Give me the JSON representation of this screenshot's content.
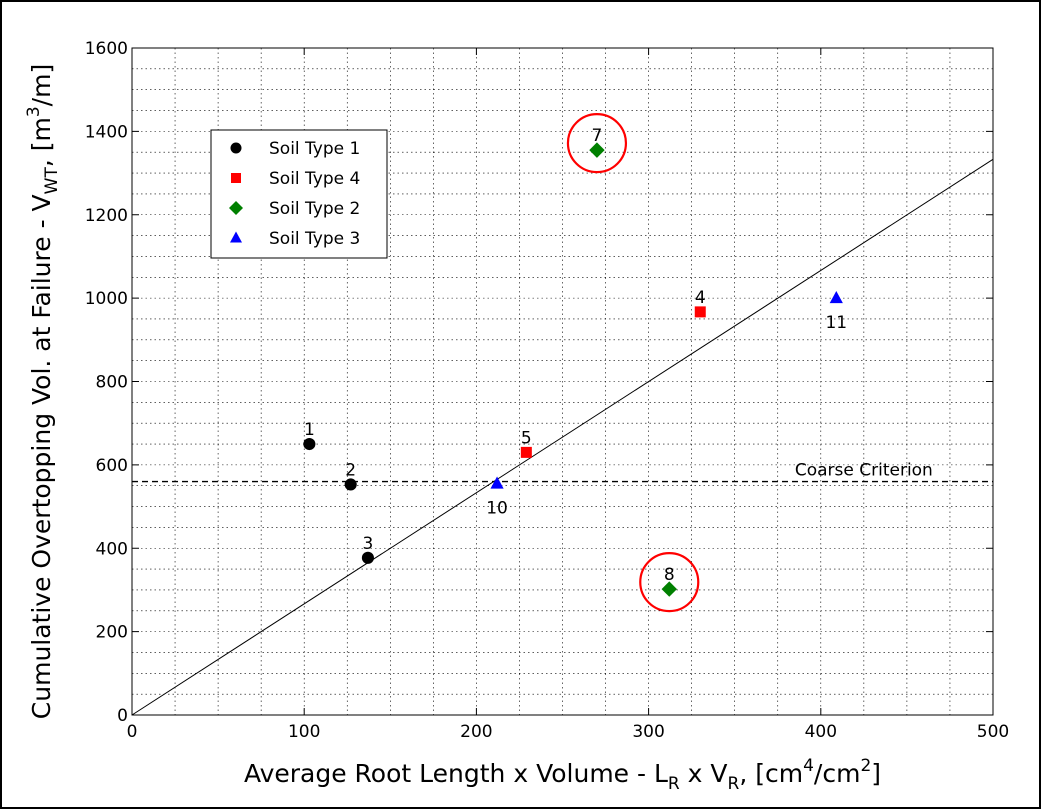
{
  "chart_data": {
    "type": "scatter",
    "xlabel": "Average Root Length x Volume - L",
    "xlabel_sub": "R",
    "xlabel_mid": " x V",
    "xlabel_sub2": "R",
    "xlabel_unit": ", [cm",
    "xlabel_sup": "4",
    "xlabel_unit2": "/cm",
    "xlabel_sup2": "2",
    "xlabel_end": "]",
    "ylabel": "Cumulative Overtopping Vol. at Failure - V",
    "ylabel_sub": "WT",
    "ylabel_unit": ", [m",
    "ylabel_sup": "3",
    "ylabel_end": "/m]",
    "xlim": [
      0,
      500
    ],
    "ylim": [
      0,
      1600
    ],
    "x_ticks": [
      0,
      100,
      200,
      300,
      400,
      500
    ],
    "y_ticks": [
      0,
      200,
      400,
      600,
      800,
      1000,
      1200,
      1400,
      1600
    ],
    "grid": true,
    "legend_position": "top-left",
    "series": [
      {
        "name": "Soil Type 1",
        "marker": "circle",
        "color": "#000000",
        "points": [
          {
            "x": 103,
            "y": 650,
            "label": "1"
          },
          {
            "x": 127,
            "y": 553,
            "label": "2"
          },
          {
            "x": 137,
            "y": 377,
            "label": "3"
          }
        ]
      },
      {
        "name": "Soil Type 4",
        "marker": "square",
        "color": "#ff0000",
        "points": [
          {
            "x": 330,
            "y": 967,
            "label": "4"
          },
          {
            "x": 229,
            "y": 630,
            "label": "5"
          }
        ]
      },
      {
        "name": "Soil Type 2",
        "marker": "diamond",
        "color": "#008000",
        "points": [
          {
            "x": 270,
            "y": 1355,
            "label": "7"
          },
          {
            "x": 312,
            "y": 302,
            "label": "8"
          }
        ]
      },
      {
        "name": "Soil Type 3",
        "marker": "triangle",
        "color": "#0000ff",
        "points": [
          {
            "x": 212,
            "y": 555,
            "label": "10"
          },
          {
            "x": 409,
            "y": 1000,
            "label": "11"
          }
        ]
      }
    ],
    "trend_line": {
      "x": [
        0,
        500
      ],
      "y": [
        0,
        1333
      ]
    },
    "criterion_line": {
      "y": 560,
      "label": "Coarse Criterion"
    },
    "highlighted_points": [
      "7",
      "8"
    ],
    "highlight_color": "#ff0000"
  }
}
